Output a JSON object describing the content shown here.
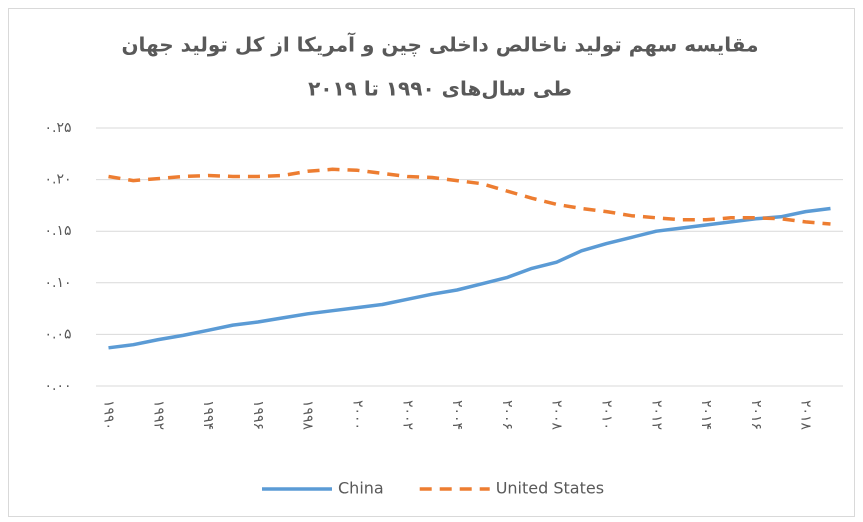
{
  "chart_data": {
    "type": "line",
    "title_lines": [
      "مقایسه سهم تولید ناخالص داخلی چین و آمریکا از کل تولید جهان",
      "طی سال‌های ۱۹۹۰ تا ۲۰۱۹"
    ],
    "categories": [
      "۱۹۹۰",
      null,
      "۱۹۹۲",
      null,
      "۱۹۹۴",
      null,
      "۱۹۹۶",
      null,
      "۱۹۹۸",
      null,
      "۲۰۰۰",
      null,
      "۲۰۰۲",
      null,
      "۲۰۰۴",
      null,
      "۲۰۰۶",
      null,
      "۲۰۰۸",
      null,
      "۲۰۱۰",
      null,
      "۲۰۱۲",
      null,
      "۲۰۱۴",
      null,
      "۲۰۱۶",
      null,
      "۲۰۱۸",
      null
    ],
    "series": [
      {
        "name": "China",
        "color": "#5b9bd5",
        "dash": "none",
        "values": [
          0.037,
          0.04,
          0.045,
          0.049,
          0.054,
          0.059,
          0.062,
          0.066,
          0.07,
          0.073,
          0.076,
          0.079,
          0.084,
          0.089,
          0.093,
          0.099,
          0.105,
          0.114,
          0.12,
          0.131,
          0.138,
          0.144,
          0.15,
          0.153,
          0.156,
          0.159,
          0.162,
          0.164,
          0.169,
          0.172
        ]
      },
      {
        "name": "United States",
        "color": "#ed7d31",
        "dash": "dashed",
        "values": [
          0.203,
          0.199,
          0.201,
          0.203,
          0.204,
          0.203,
          0.203,
          0.204,
          0.208,
          0.21,
          0.209,
          0.206,
          0.203,
          0.202,
          0.199,
          0.196,
          0.189,
          0.182,
          0.176,
          0.172,
          0.169,
          0.165,
          0.163,
          0.161,
          0.161,
          0.163,
          0.163,
          0.162,
          0.159,
          0.157
        ]
      }
    ],
    "ylim": [
      0,
      0.25
    ],
    "yticks": [
      {
        "value": 0,
        "label": "۰.۰۰"
      },
      {
        "value": 0.05,
        "label": "۰.۰۵"
      },
      {
        "value": 0.1,
        "label": "۰.۱۰"
      },
      {
        "value": 0.15,
        "label": "۰.۱۵"
      },
      {
        "value": 0.2,
        "label": "۰.۲۰"
      },
      {
        "value": 0.25,
        "label": "۰.۲۵"
      }
    ],
    "grid": true,
    "legend": "bottom"
  }
}
